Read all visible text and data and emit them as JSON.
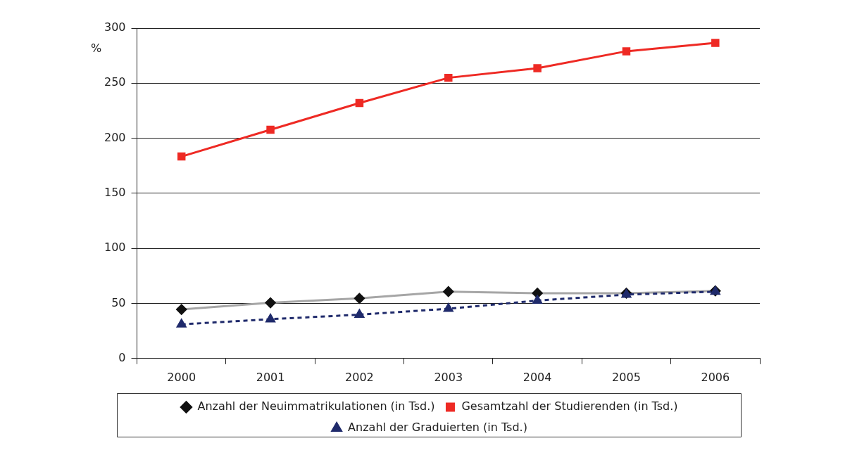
{
  "chart_data": {
    "type": "line",
    "ylabel": "%",
    "categories": [
      "2000",
      "2001",
      "2002",
      "2003",
      "2004",
      "2005",
      "2006"
    ],
    "series": [
      {
        "name": "Anzahl der Neuimmatrikulationen (in Tsd.)",
        "color": "#a6a6a6",
        "marker": "diamond",
        "line_style": "solid",
        "values": [
          44.5,
          50.6,
          54.6,
          60.7,
          59.3,
          59.3,
          61.4
        ]
      },
      {
        "name": "Gesamtzahl der Studierenden (in Tsd.)",
        "color": "#ee2a24",
        "marker": "square",
        "line_style": "solid",
        "values": [
          183.4,
          207.7,
          232,
          254.9,
          263.6,
          279,
          286.6
        ]
      },
      {
        "name": "Anzahl der Graduierten (in Tsd.)",
        "color": "#1f2a6b",
        "marker": "triangle",
        "line_style": "dashed",
        "values": [
          31,
          35.7,
          39.8,
          45.2,
          52.6,
          58,
          60.7
        ]
      }
    ],
    "ylim": [
      0,
      300
    ],
    "yticks": [
      0,
      50,
      100,
      150,
      200,
      250,
      300
    ],
    "grid": "y",
    "legend": "bottom"
  }
}
